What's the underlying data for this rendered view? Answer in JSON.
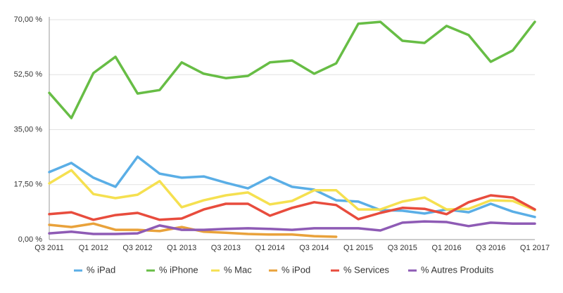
{
  "chart_data": {
    "type": "line",
    "categories": [
      "Q3 2011",
      null,
      "Q1 2012",
      null,
      "Q3 2012",
      null,
      "Q1 2013",
      null,
      "Q3 2013",
      null,
      "Q1 2014",
      null,
      "Q3 2014",
      null,
      "Q1 2015",
      null,
      "Q3 2015",
      null,
      "Q1 2016",
      null,
      "Q3 2016",
      null,
      "Q1 2017"
    ],
    "series": [
      {
        "name": "% iPad",
        "color": "#5aaee6",
        "values": [
          21.5,
          24.4,
          19.7,
          16.8,
          26.4,
          21.0,
          19.7,
          20.1,
          18.1,
          16.3,
          19.9,
          16.8,
          15.9,
          12.5,
          12.1,
          9.4,
          9.2,
          8.3,
          9.6,
          8.7,
          11.4,
          8.9,
          7.2
        ]
      },
      {
        "name": "% iPhone",
        "color": "#67bd45",
        "values": [
          46.7,
          38.7,
          53.0,
          58.2,
          46.5,
          47.6,
          56.4,
          52.8,
          51.4,
          52.1,
          56.4,
          57.0,
          52.8,
          56.1,
          68.7,
          69.3,
          63.3,
          62.6,
          68.0,
          65.1,
          56.6,
          60.2,
          69.3
        ]
      },
      {
        "name": "% Mac",
        "color": "#f5e050",
        "values": [
          17.9,
          22.1,
          14.5,
          13.2,
          14.3,
          18.6,
          10.3,
          12.5,
          14.1,
          15.0,
          11.2,
          12.3,
          15.7,
          15.7,
          9.6,
          9.6,
          12.1,
          13.4,
          9.6,
          9.8,
          12.5,
          12.3,
          9.4
        ]
      },
      {
        "name": "% iPod",
        "color": "#e9a23b",
        "values": [
          4.7,
          4.0,
          5.1,
          3.1,
          3.1,
          2.7,
          4.0,
          2.5,
          2.2,
          1.8,
          1.6,
          1.6,
          1.1,
          0.9,
          null,
          null,
          null,
          null,
          null,
          null,
          null,
          null,
          null
        ]
      },
      {
        "name": "% Services",
        "color": "#e84c3d",
        "values": [
          8.1,
          8.7,
          6.3,
          7.8,
          8.5,
          6.3,
          6.7,
          9.6,
          11.4,
          11.4,
          7.6,
          10.1,
          11.9,
          11.0,
          6.5,
          8.5,
          10.1,
          9.8,
          8.1,
          11.9,
          14.1,
          13.4,
          9.6
        ]
      },
      {
        "name": "% Autres Produits",
        "color": "#8e5bb5",
        "values": [
          2.0,
          2.5,
          1.8,
          1.8,
          2.0,
          4.5,
          3.1,
          3.1,
          3.4,
          3.6,
          3.4,
          3.1,
          3.6,
          3.6,
          3.6,
          2.9,
          5.4,
          5.8,
          5.6,
          4.3,
          5.4,
          5.1,
          5.1
        ]
      }
    ],
    "ylim": [
      0,
      70
    ],
    "yticks": [
      {
        "value": 0,
        "label": "0,00 %"
      },
      {
        "value": 17.5,
        "label": "17,50 %"
      },
      {
        "value": 35,
        "label": "35,00 %"
      },
      {
        "value": 52.5,
        "label": "52,50 %"
      },
      {
        "value": 70,
        "label": "70,00 %"
      }
    ],
    "grid": true,
    "legend": "bottom"
  }
}
